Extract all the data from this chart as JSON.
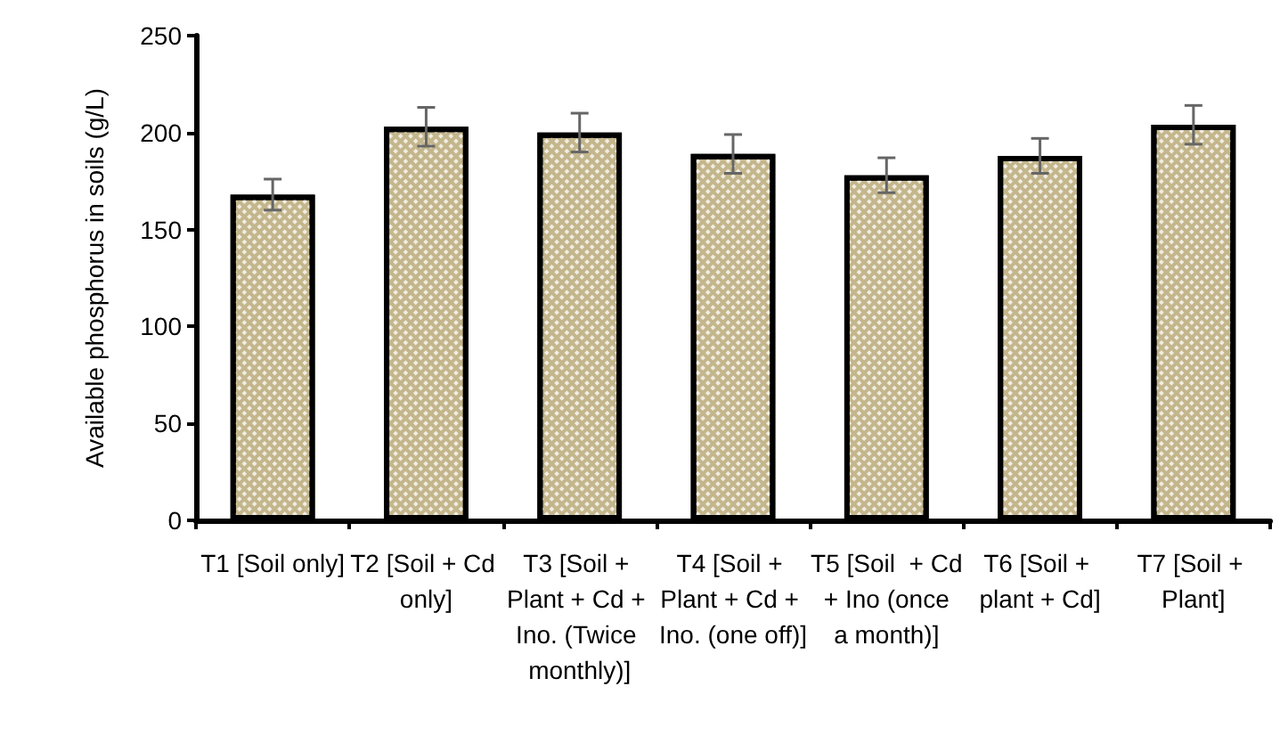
{
  "chart_data": {
    "type": "bar",
    "ylabel": "Available phosphorus in soils (g/L)",
    "categories": [
      "T1 [Soil only]",
      "T2 [Soil + Cd only]",
      "T3 [Soil + Plant + Cd + Ino. (Twice monthly)]",
      "T4 [Soil + Plant + Cd + Ino. (one off)]",
      "T5 [Soil  + Cd + Ino (once a month)]",
      "T6 [Soil + plant + Cd]",
      "T7 [Soil + Plant]"
    ],
    "values": [
      168,
      203,
      200,
      189,
      178,
      188,
      204
    ],
    "errors": [
      8,
      10,
      10,
      10,
      9,
      9,
      10
    ],
    "color": "#c4b68c",
    "ylim": [
      0,
      250
    ],
    "yticks": [
      0,
      50,
      100,
      150,
      200,
      250
    ],
    "grid": false
  }
}
